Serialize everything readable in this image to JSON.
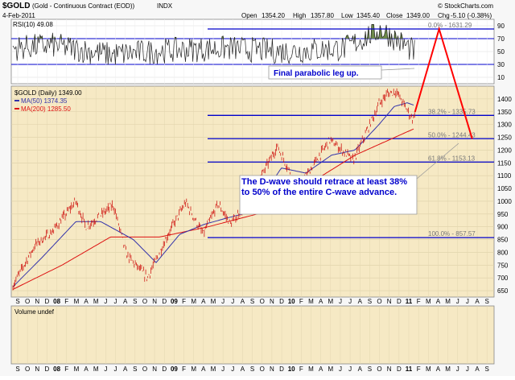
{
  "header": {
    "symbol": "$GOLD",
    "description": "(Gold - Continuous Contract (EOD))",
    "exchange": "INDX",
    "date": "4-Feb-2011",
    "open_label": "Open",
    "open": "1354.20",
    "high_label": "High",
    "high": "1357.80",
    "low_label": "Low",
    "low": "1345.40",
    "close_label": "Close",
    "close": "1349.00",
    "change_label": "Chg",
    "change": "-5.10 (-0.38%)",
    "watermark": "© StockCharts.com"
  },
  "colors": {
    "price": "#cc0000",
    "ma50": "#3333aa",
    "ma200": "#dd1111",
    "panel_bg": "#f6e9c4",
    "fib_line": "#0000cc",
    "projection": "#ff0000",
    "rsi_fill": "#6e8a4a"
  },
  "rsi_panel": {
    "label": "RSI(10) 49.08",
    "ticks": [
      "90",
      "70",
      "50",
      "30",
      "10"
    ]
  },
  "price_panel": {
    "legend_title": "$GOLD (Daily) 1349.00",
    "legend_ma50": "MA(50) 1374.35",
    "legend_ma200": "MA(200) 1285.50"
  },
  "volume_panel": {
    "label": "Volume undef"
  },
  "annotations": {
    "parabolic": "Final parabolic leg up.",
    "dwave": "The D-wave should retrace at least 38% to 50% of the entire C-wave advance."
  },
  "x_axis": {
    "labels": [
      "S",
      "O",
      "N",
      "D",
      "08",
      "F",
      "M",
      "A",
      "M",
      "J",
      "J",
      "A",
      "S",
      "O",
      "N",
      "D",
      "09",
      "F",
      "M",
      "A",
      "M",
      "J",
      "J",
      "A",
      "S",
      "O",
      "N",
      "D",
      "10",
      "F",
      "M",
      "A",
      "M",
      "J",
      "J",
      "A",
      "S",
      "O",
      "N",
      "D",
      "11",
      "F",
      "M",
      "A",
      "M",
      "J",
      "J",
      "A",
      "S"
    ]
  },
  "chart_data": {
    "type": "line",
    "title": "$GOLD (Gold - Continuous Contract (EOD)) INDX",
    "ylim": [
      625,
      1450
    ],
    "y_ticks": [
      1400,
      1350,
      1300,
      1250,
      1200,
      1150,
      1100,
      1050,
      1000,
      950,
      900,
      850,
      800,
      750,
      700,
      650
    ],
    "fib_levels": [
      {
        "label": "0.0% - 1631.29",
        "value": 1631.29
      },
      {
        "label": "38.2% - 1335.73",
        "value": 1335.73
      },
      {
        "label": "50.0% - 1244.43",
        "value": 1244.43
      },
      {
        "label": "61.8% - 1153.13",
        "value": 1153.13
      },
      {
        "label": "100.0% - 857.57",
        "value": 857.57
      }
    ],
    "series": [
      {
        "name": "$GOLD (Daily)",
        "x": [
          "2007-09-01",
          "2007-10-01",
          "2007-11-10",
          "2008-01-01",
          "2008-03-15",
          "2008-04-15",
          "2008-07-10",
          "2008-08-20",
          "2008-10-24",
          "2008-12-31",
          "2009-02-20",
          "2009-04-15",
          "2009-06-01",
          "2009-07-10",
          "2009-09-01",
          "2009-12-02",
          "2010-02-05",
          "2010-05-15",
          "2010-07-28",
          "2010-10-15",
          "2010-11-09",
          "2010-12-07",
          "2011-01-28",
          "2011-02-04"
        ],
        "y": [
          670,
          740,
          830,
          880,
          1000,
          900,
          985,
          790,
          700,
          880,
          995,
          870,
          990,
          910,
          1000,
          1215,
          1050,
          1240,
          1160,
          1380,
          1420,
          1430,
          1320,
          1349
        ]
      },
      {
        "name": "MA(50)",
        "x": [
          "2007-09-01",
          "2007-12-01",
          "2008-03-15",
          "2008-06-01",
          "2008-09-10",
          "2008-11-20",
          "2009-02-01",
          "2009-04-20",
          "2009-07-01",
          "2009-09-15",
          "2009-12-15",
          "2010-03-01",
          "2010-05-20",
          "2010-08-01",
          "2010-10-15",
          "2010-12-01",
          "2011-01-10",
          "2011-02-04"
        ],
        "y": [
          665,
          780,
          920,
          920,
          850,
          760,
          870,
          910,
          935,
          960,
          1130,
          1110,
          1180,
          1200,
          1300,
          1370,
          1385,
          1374
        ]
      },
      {
        "name": "MA(200)",
        "x": [
          "2007-09-01",
          "2008-02-01",
          "2008-07-01",
          "2008-12-01",
          "2009-05-01",
          "2009-10-01",
          "2010-03-01",
          "2010-08-01",
          "2011-02-04"
        ],
        "y": [
          655,
          750,
          860,
          860,
          900,
          950,
          1060,
          1180,
          1285
        ]
      },
      {
        "name": "RSI(10)",
        "x": [
          "2007-09-01",
          "2008-01-01",
          "2008-07-01",
          "2009-01-01",
          "2009-07-01",
          "2010-01-01",
          "2010-07-01",
          "2010-10-20",
          "2011-02-04"
        ],
        "y": [
          55,
          60,
          45,
          52,
          55,
          50,
          55,
          85,
          49.08
        ]
      },
      {
        "name": "Projection",
        "x": [
          "2011-02-04",
          "2011-04-20",
          "2011-08-01"
        ],
        "y": [
          1349,
          1631,
          1244
        ]
      }
    ]
  }
}
